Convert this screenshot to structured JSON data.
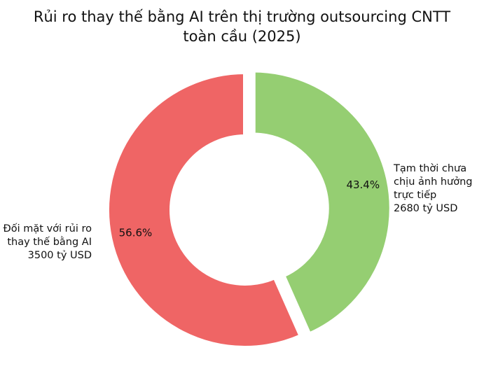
{
  "chart_data": {
    "type": "pie",
    "donut": true,
    "title_lines": [
      "Rủi ro thay thế bằng AI trên thị trường outsourcing CNTT",
      "toàn cầu (2025)"
    ],
    "slices": [
      {
        "label_lines": [
          "Đối mặt với rủi ro",
          "thay thế bằng AI",
          "3500 tỷ USD"
        ],
        "value": 3500,
        "percent_label": "56.6%",
        "color": "#ef6565",
        "exploded": false
      },
      {
        "label_lines": [
          "Tạm thời chưa",
          "chịu ảnh hưởng",
          "trực tiếp",
          "2680 tỷ USD"
        ],
        "value": 2680,
        "percent_label": "43.4%",
        "color": "#95ce72",
        "exploded": true
      }
    ],
    "start": "top",
    "direction": "counterclockwise",
    "legend": "none"
  }
}
